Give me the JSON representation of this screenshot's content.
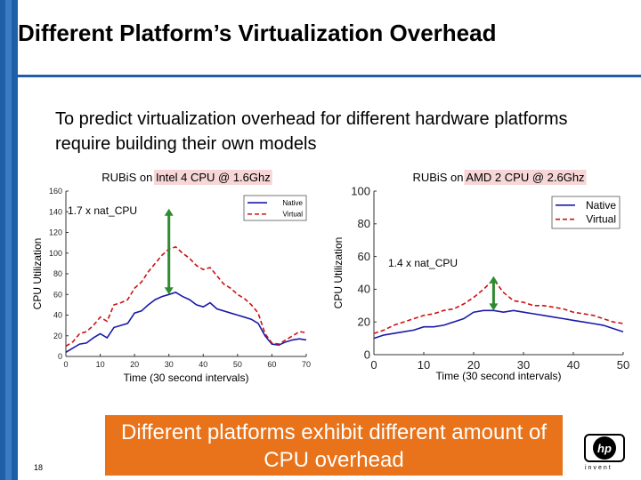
{
  "slide": {
    "title": "Different Platform’s Virtualization Overhead",
    "subtitle": "To predict virtualization overhead for different hardware platforms require building  their own models",
    "callout": "Different platforms exhibit different amount of CPU overhead",
    "slide_number": "18",
    "logo_text": "hp",
    "logo_word": "invent",
    "brand_color": "#1f5fa8",
    "callout_color": "#e8731a"
  },
  "chart_data": [
    {
      "type": "line",
      "title": "RUBiS on Intel 4 CPU @ 1.6Ghz",
      "title_prefix": "RUBiS on ",
      "title_platform": "Intel 4 CPU @ 1.6Ghz",
      "xlabel": "Time (30 second intervals)",
      "ylabel": "CPU Utilization",
      "xlim": [
        0,
        70
      ],
      "ylim": [
        0,
        160
      ],
      "xticks": [
        0,
        10,
        20,
        30,
        40,
        50,
        60,
        70
      ],
      "yticks": [
        0,
        20,
        40,
        60,
        80,
        100,
        120,
        140,
        160
      ],
      "legend": [
        "Native",
        "Virtual"
      ],
      "annotation": "1.7 x nat_CPU",
      "arrow": {
        "x": 30,
        "from": 60,
        "to": 143
      },
      "series": [
        {
          "name": "Native",
          "color": "#1a1aa8",
          "dash": "",
          "x": [
            0,
            2,
            4,
            6,
            8,
            10,
            12,
            14,
            16,
            18,
            20,
            22,
            24,
            26,
            28,
            30,
            32,
            34,
            36,
            38,
            40,
            42,
            44,
            46,
            48,
            50,
            52,
            54,
            56,
            58,
            60,
            62,
            64,
            66,
            68,
            70
          ],
          "values": [
            4,
            8,
            12,
            13,
            18,
            22,
            18,
            28,
            30,
            32,
            42,
            44,
            50,
            55,
            58,
            60,
            62,
            58,
            55,
            50,
            48,
            52,
            46,
            44,
            42,
            40,
            38,
            36,
            32,
            20,
            12,
            11,
            14,
            16,
            17,
            16
          ]
        },
        {
          "name": "Virtual",
          "color": "#cc1111",
          "dash": "5,3",
          "x": [
            0,
            2,
            4,
            6,
            8,
            10,
            12,
            14,
            16,
            18,
            20,
            22,
            24,
            26,
            28,
            30,
            32,
            34,
            36,
            38,
            40,
            42,
            44,
            46,
            48,
            50,
            52,
            54,
            56,
            58,
            60,
            62,
            64,
            66,
            68,
            70
          ],
          "values": [
            10,
            14,
            22,
            24,
            30,
            38,
            34,
            50,
            52,
            55,
            66,
            72,
            82,
            90,
            98,
            104,
            106,
            100,
            95,
            88,
            84,
            86,
            78,
            70,
            66,
            60,
            56,
            50,
            42,
            22,
            13,
            12,
            16,
            20,
            24,
            23
          ]
        }
      ]
    },
    {
      "type": "line",
      "title": "RUBiS on AMD 2 CPU @ 2.6Ghz",
      "title_prefix": "RUBiS on ",
      "title_platform": "AMD 2 CPU @ 2.6Ghz",
      "xlabel": "Time (30 second intervals)",
      "ylabel": "CPU Utilization",
      "xlim": [
        0,
        50
      ],
      "ylim": [
        0,
        100
      ],
      "xticks": [
        0,
        10,
        20,
        30,
        40,
        50
      ],
      "yticks": [
        0,
        20,
        40,
        60,
        80,
        100
      ],
      "legend": [
        "Native",
        "Virtual"
      ],
      "annotation": "1.4 x nat_CPU",
      "arrow": {
        "x": 24,
        "from": 27,
        "to": 48
      },
      "series": [
        {
          "name": "Native",
          "color": "#1a1aa8",
          "dash": "",
          "x": [
            0,
            2,
            4,
            6,
            8,
            10,
            12,
            14,
            16,
            18,
            20,
            22,
            24,
            26,
            28,
            30,
            32,
            34,
            36,
            38,
            40,
            42,
            44,
            46,
            48,
            50
          ],
          "values": [
            10,
            12,
            13,
            14,
            15,
            17,
            17,
            18,
            20,
            22,
            26,
            27,
            27,
            26,
            27,
            26,
            25,
            24,
            23,
            22,
            21,
            20,
            19,
            18,
            16,
            14
          ]
        },
        {
          "name": "Virtual",
          "color": "#cc1111",
          "dash": "5,3",
          "x": [
            0,
            2,
            4,
            6,
            8,
            10,
            12,
            14,
            16,
            18,
            20,
            22,
            24,
            26,
            28,
            30,
            32,
            34,
            36,
            38,
            40,
            42,
            44,
            46,
            48,
            50
          ],
          "values": [
            13,
            15,
            18,
            20,
            22,
            24,
            25,
            27,
            28,
            31,
            35,
            40,
            46,
            38,
            33,
            32,
            30,
            30,
            29,
            28,
            26,
            25,
            24,
            22,
            20,
            19
          ]
        }
      ]
    }
  ]
}
